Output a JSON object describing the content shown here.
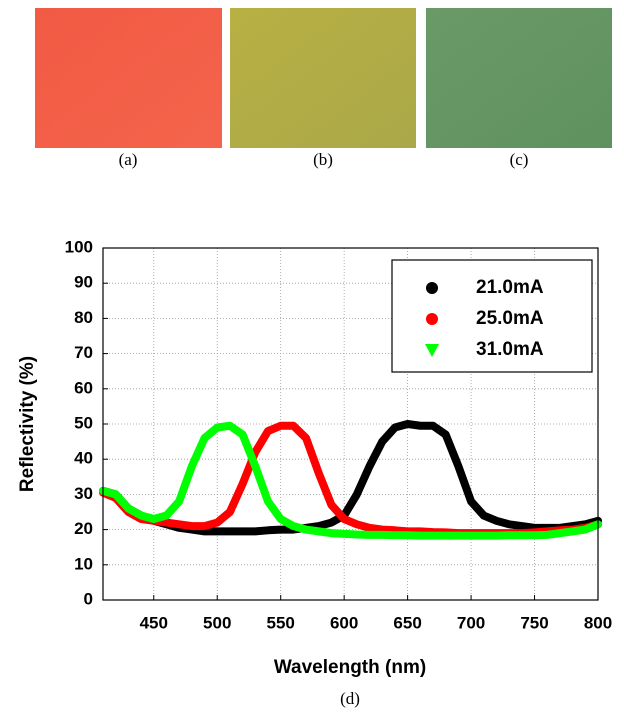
{
  "panels": [
    "(a)",
    "(b)",
    "(c)"
  ],
  "chart_data": {
    "type": "line",
    "caption": "(d)",
    "x_label": "Wavelength (nm)",
    "y_label": "Reflectivity (%)",
    "x": [
      410,
      420,
      430,
      440,
      450,
      460,
      470,
      480,
      490,
      500,
      510,
      520,
      530,
      540,
      550,
      560,
      570,
      580,
      590,
      600,
      610,
      620,
      630,
      640,
      650,
      660,
      670,
      680,
      690,
      700,
      710,
      720,
      730,
      740,
      750,
      760,
      770,
      780,
      790,
      800
    ],
    "series": [
      {
        "name": "21.0mA",
        "color": "#000000",
        "marker": "circle",
        "values": [
          31,
          30,
          26,
          24,
          22.5,
          21.5,
          20.5,
          20,
          19.5,
          19.5,
          19.5,
          19.5,
          19.5,
          19.8,
          20,
          20,
          20.5,
          21,
          22,
          24,
          30,
          38,
          45,
          49,
          50,
          49.5,
          49.5,
          47,
          38,
          28,
          24,
          22.5,
          21.5,
          21,
          20.5,
          20.5,
          20.5,
          21,
          21.5,
          22.5
        ]
      },
      {
        "name": "25.0mA",
        "color": "#ff0000",
        "marker": "circle",
        "values": [
          30.5,
          29,
          25,
          23,
          22.5,
          22,
          21.5,
          21,
          21,
          22,
          25,
          33,
          42,
          48,
          49.5,
          49.5,
          46,
          36,
          27,
          23,
          21.5,
          20.5,
          20,
          19.8,
          19.5,
          19.5,
          19.3,
          19.2,
          19,
          19,
          19,
          19,
          19,
          19,
          19.2,
          19.5,
          19.8,
          20,
          20.5,
          21.5
        ]
      },
      {
        "name": "31.0mA",
        "color": "#00ff00",
        "marker": "triangle-down",
        "values": [
          31,
          30,
          26,
          24,
          23,
          24,
          28,
          38,
          46,
          49,
          49.5,
          47,
          38,
          28,
          23,
          21,
          20,
          19.5,
          19,
          18.8,
          18.6,
          18.5,
          18.5,
          18.4,
          18.4,
          18.3,
          18.3,
          18.3,
          18.3,
          18.3,
          18.3,
          18.3,
          18.4,
          18.4,
          18.4,
          18.5,
          19,
          19.5,
          20,
          21.5
        ]
      }
    ],
    "xlim": [
      410,
      800
    ],
    "xticks": [
      450,
      500,
      550,
      600,
      650,
      700,
      750,
      800
    ],
    "ylim": [
      0,
      100
    ],
    "yticks": [
      0,
      10,
      20,
      30,
      40,
      50,
      60,
      70,
      80,
      90,
      100
    ],
    "grid": true,
    "legend": "upper right"
  }
}
